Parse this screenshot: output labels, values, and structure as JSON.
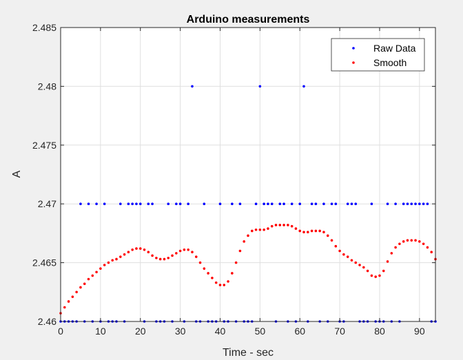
{
  "chart_data": {
    "type": "scatter",
    "title": "Arduino measurements",
    "xlabel": "Time - sec",
    "ylabel": "A",
    "xlim": [
      0,
      94
    ],
    "ylim": [
      2.46,
      2.485
    ],
    "xticks": [
      0,
      10,
      20,
      30,
      40,
      50,
      60,
      70,
      80,
      90
    ],
    "yticks": [
      2.46,
      2.465,
      2.47,
      2.475,
      2.48,
      2.485
    ],
    "xtick_labels": [
      "0",
      "10",
      "20",
      "30",
      "40",
      "50",
      "60",
      "70",
      "80",
      "90"
    ],
    "ytick_labels": [
      "2.46",
      "2.465",
      "2.47",
      "2.475",
      "2.48",
      "2.485"
    ],
    "grid": true,
    "legend_position": "top-right",
    "colors": {
      "figure_bg": "#f0f0f0",
      "axes_bg": "#ffffff",
      "grid": "#dfdfdf",
      "axis": "#262626"
    },
    "series": [
      {
        "name": "Raw Data",
        "color": "#0000ff",
        "marker": "dot",
        "x": [
          0,
          1,
          2,
          3,
          4,
          5,
          6,
          7,
          8,
          9,
          10,
          11,
          12,
          13,
          14,
          15,
          16,
          17,
          18,
          19,
          20,
          21,
          22,
          23,
          24,
          25,
          26,
          27,
          28,
          29,
          30,
          31,
          32,
          33,
          34,
          35,
          36,
          37,
          38,
          39,
          40,
          41,
          42,
          43,
          44,
          45,
          46,
          47,
          48,
          49,
          50,
          51,
          52,
          53,
          54,
          55,
          56,
          57,
          58,
          59,
          60,
          61,
          62,
          63,
          64,
          65,
          66,
          67,
          68,
          69,
          70,
          71,
          72,
          73,
          74,
          75,
          76,
          77,
          78,
          79,
          80,
          81,
          82,
          83,
          84,
          85,
          86,
          87,
          88,
          89,
          90,
          91,
          92,
          93,
          94
        ],
        "y": [
          2.46,
          2.46,
          2.46,
          2.46,
          2.46,
          2.47,
          2.46,
          2.47,
          2.46,
          2.47,
          2.46,
          2.47,
          2.46,
          2.46,
          2.46,
          2.47,
          2.46,
          2.47,
          2.47,
          2.47,
          2.47,
          2.46,
          2.47,
          2.47,
          2.46,
          2.46,
          2.46,
          2.47,
          2.46,
          2.47,
          2.47,
          2.46,
          2.47,
          2.48,
          2.46,
          2.46,
          2.47,
          2.46,
          2.46,
          2.46,
          2.47,
          2.46,
          2.46,
          2.47,
          2.46,
          2.47,
          2.46,
          2.46,
          2.46,
          2.47,
          2.48,
          2.47,
          2.47,
          2.47,
          2.46,
          2.47,
          2.47,
          2.46,
          2.47,
          2.46,
          2.47,
          2.48,
          2.46,
          2.47,
          2.47,
          2.46,
          2.47,
          2.46,
          2.47,
          2.47,
          2.46,
          2.46,
          2.47,
          2.47,
          2.47,
          2.46,
          2.46,
          2.46,
          2.47,
          2.46,
          2.46,
          2.46,
          2.47,
          2.46,
          2.47,
          2.46,
          2.47,
          2.47,
          2.47,
          2.47,
          2.47,
          2.47,
          2.47,
          2.46,
          2.46
        ]
      },
      {
        "name": "Smooth",
        "color": "#ff0000",
        "marker": "dot",
        "x": [
          0,
          1,
          2,
          3,
          4,
          5,
          6,
          7,
          8,
          9,
          10,
          11,
          12,
          13,
          14,
          15,
          16,
          17,
          18,
          19,
          20,
          21,
          22,
          23,
          24,
          25,
          26,
          27,
          28,
          29,
          30,
          31,
          32,
          33,
          34,
          35,
          36,
          37,
          38,
          39,
          40,
          41,
          42,
          43,
          44,
          45,
          46,
          47,
          48,
          49,
          50,
          51,
          52,
          53,
          54,
          55,
          56,
          57,
          58,
          59,
          60,
          61,
          62,
          63,
          64,
          65,
          66,
          67,
          68,
          69,
          70,
          71,
          72,
          73,
          74,
          75,
          76,
          77,
          78,
          79,
          80,
          81,
          82,
          83,
          84,
          85,
          86,
          87,
          88,
          89,
          90,
          91,
          92,
          93,
          94
        ],
        "y": [
          2.4607,
          2.4612,
          2.4617,
          2.4621,
          2.4625,
          2.4629,
          2.4632,
          2.4636,
          2.4639,
          2.4642,
          2.4645,
          2.4648,
          2.465,
          2.4652,
          2.4653,
          2.4655,
          2.4657,
          2.4659,
          2.4661,
          2.4662,
          2.4662,
          2.4661,
          2.4659,
          2.4656,
          2.4654,
          2.4653,
          2.4653,
          2.4654,
          2.4656,
          2.4658,
          2.466,
          2.4661,
          2.4661,
          2.4659,
          2.4655,
          2.465,
          2.4645,
          2.4641,
          2.4637,
          2.4633,
          2.4631,
          2.4631,
          2.4634,
          2.4641,
          2.465,
          2.466,
          2.4668,
          2.4673,
          2.4677,
          2.4678,
          2.4678,
          2.4678,
          2.4679,
          2.4681,
          2.4682,
          2.4682,
          2.4682,
          2.4682,
          2.4681,
          2.4679,
          2.4677,
          2.4676,
          2.4676,
          2.4677,
          2.4677,
          2.4677,
          2.4676,
          2.4673,
          2.4669,
          2.4664,
          2.466,
          2.4657,
          2.4655,
          2.4652,
          2.465,
          2.4648,
          2.4646,
          2.4643,
          2.4639,
          2.4638,
          2.4639,
          2.4643,
          2.4651,
          2.4658,
          2.4663,
          2.4666,
          2.4668,
          2.4669,
          2.4669,
          2.4669,
          2.4668,
          2.4666,
          2.4663,
          2.4659,
          2.4653
        ]
      }
    ]
  }
}
